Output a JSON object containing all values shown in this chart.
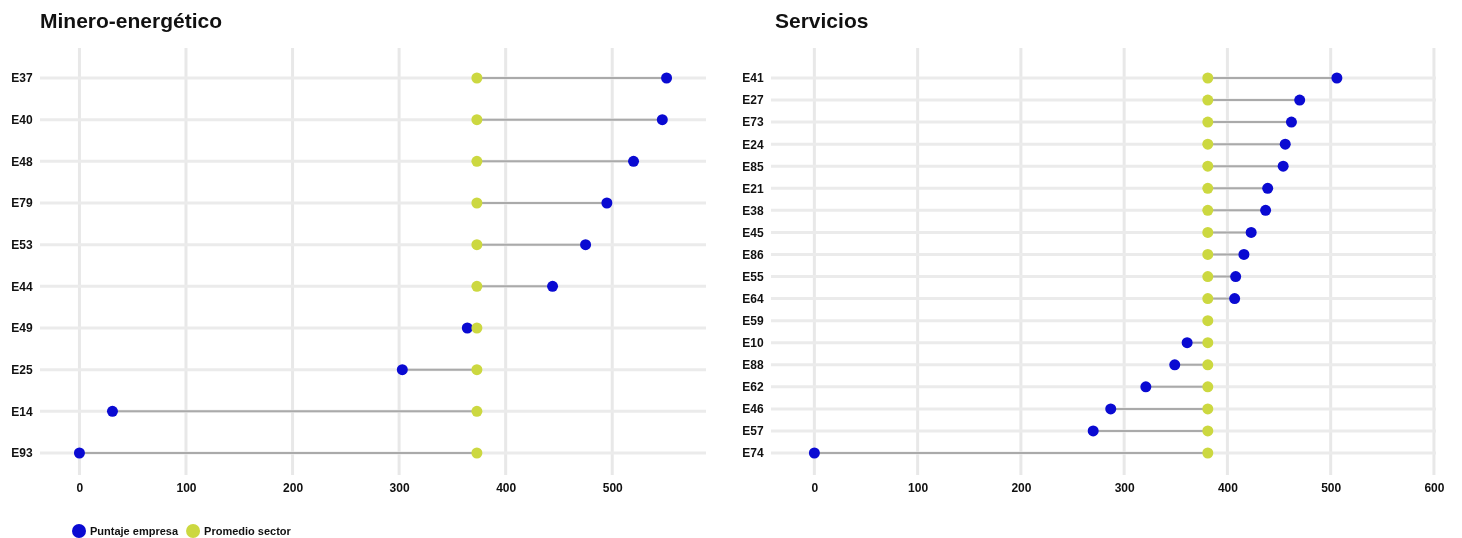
{
  "chart_data": [
    {
      "type": "scatter",
      "orientation": "horizontal",
      "title": "Minero-energético",
      "categories": [
        "E37",
        "E40",
        "E48",
        "E79",
        "E53",
        "E44",
        "E49",
        "E25",
        "E14",
        "E93"
      ],
      "series": [
        {
          "name": "Puntaje empresa",
          "color": "#0a0ad2",
          "values": [
            551,
            547,
            520,
            495,
            475,
            444,
            364,
            303,
            31,
            0
          ]
        },
        {
          "name": "Promedio sector",
          "color": "#ccd840",
          "values": [
            373,
            373,
            373,
            373,
            373,
            373,
            373,
            373,
            373,
            373
          ]
        }
      ],
      "xlim": [
        -37,
        588
      ],
      "xticks": [
        0,
        100,
        200,
        300,
        400,
        500
      ],
      "grid": true,
      "legend": "bottom left",
      "marker": "circle"
    },
    {
      "type": "scatter",
      "orientation": "horizontal",
      "title": "Servicios",
      "categories": [
        "E41",
        "E27",
        "E73",
        "E24",
        "E85",
        "E21",
        "E38",
        "E45",
        "E86",
        "E55",
        "E64",
        "E59",
        "E10",
        "E88",
        "E62",
        "E46",
        "E57",
        "E74"
      ],
      "series": [
        {
          "color": "#0a0ad2",
          "values": [
            506,
            470,
            462,
            456,
            454,
            439,
            437,
            423,
            416,
            408,
            407,
            null,
            361,
            349,
            321,
            287,
            270,
            0
          ]
        },
        {
          "color": "#ccd840",
          "values": [
            381,
            381,
            381,
            381,
            381,
            381,
            381,
            381,
            381,
            381,
            381,
            381,
            381,
            381,
            381,
            381,
            381,
            381
          ]
        }
      ],
      "xlim": [
        -42,
        602
      ],
      "xticks": [
        0,
        100,
        200,
        300,
        400,
        500,
        600
      ],
      "grid": true,
      "marker": "circle"
    }
  ]
}
